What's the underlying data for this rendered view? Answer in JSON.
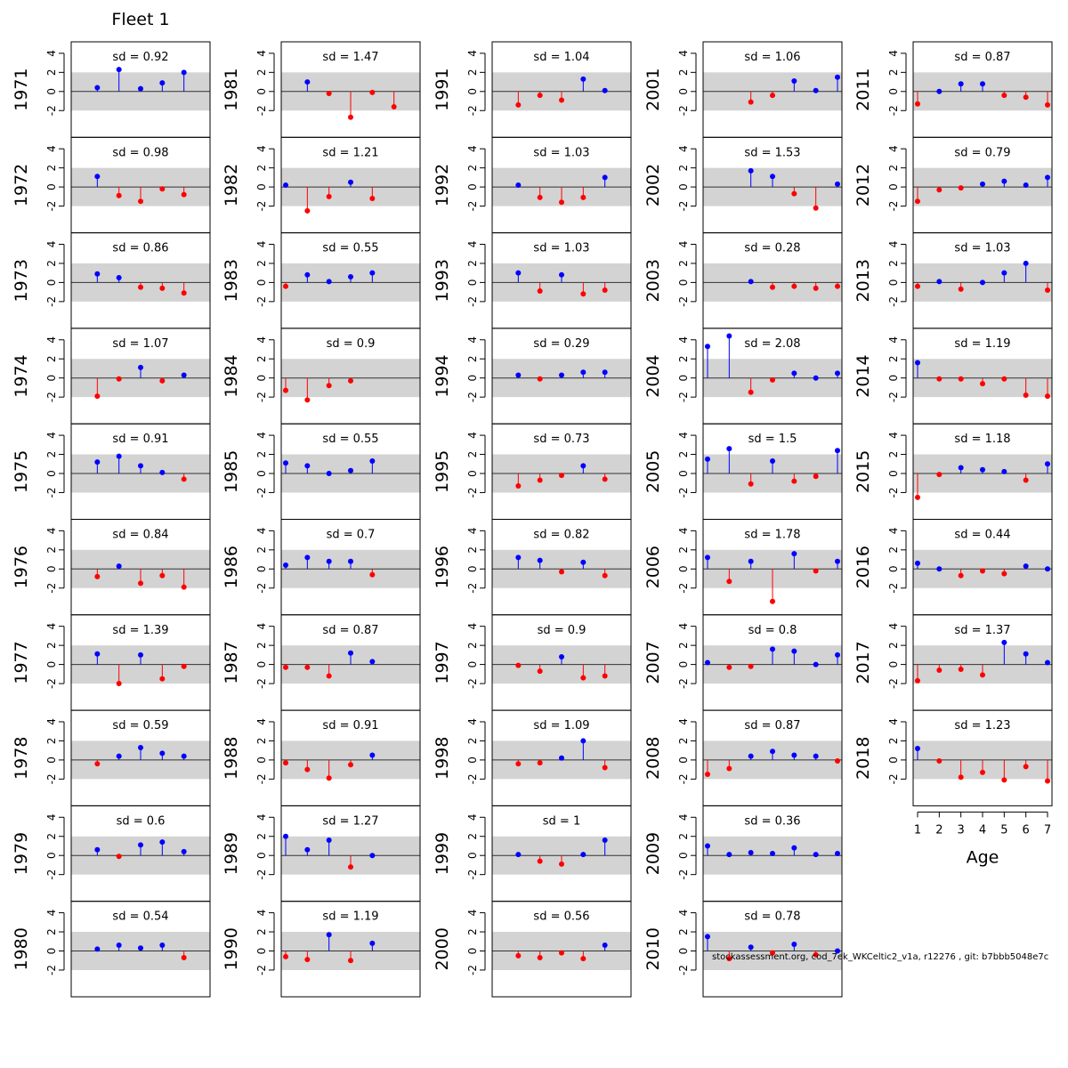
{
  "chart_data": {
    "type": "scatter",
    "style": "lollipop",
    "title": "Fleet 1",
    "xlabel": "Age",
    "x_ticks": [
      1,
      2,
      3,
      4,
      5,
      6,
      7
    ],
    "xlim": [
      1,
      7
    ],
    "ylim": [
      -4.8,
      5.2
    ],
    "y_ticks": [
      -2,
      0,
      2,
      4
    ],
    "y_tick_labels": [
      "-2",
      "0",
      "2",
      "4"
    ],
    "band": [
      -2,
      2
    ],
    "positive_color": "#0000ff",
    "negative_color": "#ff0000",
    "band_color": "#d3d3d3",
    "footer": "stockassessment.org, cod_7ek_WKCeltic2_v1a, r12276 , git: b7bbb5048e7c",
    "panels": [
      {
        "year": "1971",
        "sd_label": "sd = 0.92",
        "values": [
          null,
          0.4,
          2.3,
          0.3,
          0.9,
          2.0
        ]
      },
      {
        "year": "1972",
        "sd_label": "sd = 0.98",
        "values": [
          null,
          1.1,
          -0.9,
          -1.5,
          -0.2,
          -0.8
        ]
      },
      {
        "year": "1973",
        "sd_label": "sd = 0.86",
        "values": [
          null,
          0.9,
          0.5,
          -0.5,
          -0.6,
          -1.1
        ]
      },
      {
        "year": "1974",
        "sd_label": "sd = 1.07",
        "values": [
          null,
          -1.9,
          -0.1,
          1.1,
          -0.3,
          0.3
        ]
      },
      {
        "year": "1975",
        "sd_label": "sd = 0.91",
        "values": [
          null,
          1.2,
          1.8,
          0.8,
          0.1,
          -0.6
        ]
      },
      {
        "year": "1976",
        "sd_label": "sd = 0.84",
        "values": [
          null,
          -0.8,
          0.3,
          -1.5,
          -0.7,
          -1.9
        ]
      },
      {
        "year": "1977",
        "sd_label": "sd = 1.39",
        "values": [
          null,
          1.1,
          -2.0,
          1.0,
          -1.5,
          -0.2
        ]
      },
      {
        "year": "1978",
        "sd_label": "sd = 0.59",
        "values": [
          null,
          -0.4,
          0.4,
          1.3,
          0.7,
          0.4
        ]
      },
      {
        "year": "1979",
        "sd_label": "sd = 0.6",
        "values": [
          null,
          0.6,
          -0.1,
          1.1,
          1.4,
          0.4
        ]
      },
      {
        "year": "1980",
        "sd_label": "sd = 0.54",
        "values": [
          null,
          0.2,
          0.6,
          0.3,
          0.6,
          -0.7
        ]
      },
      {
        "year": "1981",
        "sd_label": "sd = 1.47",
        "values": [
          null,
          1.0,
          -0.2,
          -2.7,
          -0.1,
          -1.6
        ]
      },
      {
        "year": "1982",
        "sd_label": "sd = 1.21",
        "values": [
          0.2,
          -2.5,
          -1.0,
          0.5,
          -1.2
        ]
      },
      {
        "year": "1983",
        "sd_label": "sd = 0.55",
        "values": [
          -0.4,
          0.8,
          0.1,
          0.6,
          1.0
        ]
      },
      {
        "year": "1984",
        "sd_label": "sd = 0.9",
        "values": [
          -1.3,
          -2.3,
          -0.8,
          -0.3
        ]
      },
      {
        "year": "1985",
        "sd_label": "sd = 0.55",
        "values": [
          1.1,
          0.8,
          0.0,
          0.3,
          1.3
        ]
      },
      {
        "year": "1986",
        "sd_label": "sd = 0.7",
        "values": [
          0.4,
          1.2,
          0.8,
          0.8,
          -0.6
        ]
      },
      {
        "year": "1987",
        "sd_label": "sd = 0.87",
        "values": [
          -0.3,
          -0.3,
          -1.2,
          1.2,
          0.3
        ]
      },
      {
        "year": "1988",
        "sd_label": "sd = 0.91",
        "values": [
          -0.3,
          -1.0,
          -1.9,
          -0.5,
          0.5
        ]
      },
      {
        "year": "1989",
        "sd_label": "sd = 1.27",
        "values": [
          2.0,
          0.6,
          1.6,
          -1.2,
          0.0
        ]
      },
      {
        "year": "1990",
        "sd_label": "sd = 1.19",
        "values": [
          -0.6,
          -0.9,
          1.7,
          -1.0,
          0.8
        ]
      },
      {
        "year": "1991",
        "sd_label": "sd = 1.04",
        "values": [
          null,
          -1.4,
          -0.4,
          -0.9,
          1.3,
          0.1
        ]
      },
      {
        "year": "1992",
        "sd_label": "sd = 1.03",
        "values": [
          null,
          0.2,
          -1.1,
          -1.6,
          -1.1,
          1.0
        ]
      },
      {
        "year": "1993",
        "sd_label": "sd = 1.03",
        "values": [
          null,
          1.0,
          -0.9,
          0.8,
          -1.2,
          -0.8
        ]
      },
      {
        "year": "1994",
        "sd_label": "sd = 0.29",
        "values": [
          null,
          0.3,
          -0.1,
          0.3,
          0.6,
          0.6
        ]
      },
      {
        "year": "1995",
        "sd_label": "sd = 0.73",
        "values": [
          null,
          -1.3,
          -0.7,
          -0.2,
          0.8,
          -0.6
        ]
      },
      {
        "year": "1996",
        "sd_label": "sd = 0.82",
        "values": [
          null,
          1.2,
          0.9,
          -0.3,
          0.7,
          -0.7
        ]
      },
      {
        "year": "1997",
        "sd_label": "sd = 0.9",
        "values": [
          null,
          -0.1,
          -0.7,
          0.8,
          -1.4,
          -1.2
        ]
      },
      {
        "year": "1998",
        "sd_label": "sd = 1.09",
        "values": [
          null,
          -0.4,
          -0.3,
          0.2,
          2.0,
          -0.8
        ]
      },
      {
        "year": "1999",
        "sd_label": "sd = 1",
        "values": [
          null,
          0.1,
          -0.6,
          -0.9,
          0.1,
          1.6
        ]
      },
      {
        "year": "2000",
        "sd_label": "sd = 0.56",
        "values": [
          null,
          -0.5,
          -0.7,
          -0.2,
          -0.8,
          0.6
        ]
      },
      {
        "year": "2001",
        "sd_label": "sd = 1.06",
        "values": [
          null,
          null,
          -1.1,
          -0.4,
          1.1,
          0.1,
          1.5
        ]
      },
      {
        "year": "2002",
        "sd_label": "sd = 1.53",
        "values": [
          null,
          null,
          1.7,
          1.1,
          -0.7,
          -2.2,
          0.3
        ]
      },
      {
        "year": "2003",
        "sd_label": "sd = 0.28",
        "values": [
          null,
          null,
          0.1,
          -0.5,
          -0.4,
          -0.6,
          -0.4
        ]
      },
      {
        "year": "2004",
        "sd_label": "sd = 2.08",
        "values": [
          3.3,
          4.4,
          -1.5,
          -0.2,
          0.5,
          0.0,
          0.5
        ]
      },
      {
        "year": "2005",
        "sd_label": "sd = 1.5",
        "values": [
          1.5,
          2.6,
          -1.1,
          1.3,
          -0.8,
          -0.3,
          2.4
        ]
      },
      {
        "year": "2006",
        "sd_label": "sd = 1.78",
        "values": [
          1.2,
          -1.3,
          0.8,
          -3.4,
          1.6,
          -0.2,
          0.8
        ]
      },
      {
        "year": "2007",
        "sd_label": "sd = 0.8",
        "values": [
          0.2,
          -0.3,
          -0.2,
          1.6,
          1.4,
          0.0,
          1.0
        ]
      },
      {
        "year": "2008",
        "sd_label": "sd = 0.87",
        "values": [
          -1.5,
          -0.9,
          0.4,
          0.9,
          0.5,
          0.4,
          -0.1
        ]
      },
      {
        "year": "2009",
        "sd_label": "sd = 0.36",
        "values": [
          1.0,
          0.1,
          0.3,
          0.2,
          0.8,
          0.1,
          0.2
        ]
      },
      {
        "year": "2010",
        "sd_label": "sd = 0.78",
        "values": [
          1.5,
          -0.8,
          0.4,
          -0.2,
          0.7,
          -0.4,
          0.0
        ]
      },
      {
        "year": "2011",
        "sd_label": "sd = 0.87",
        "values": [
          -1.3,
          0.0,
          0.8,
          0.8,
          -0.4,
          -0.6,
          -1.4
        ]
      },
      {
        "year": "2012",
        "sd_label": "sd = 0.79",
        "values": [
          -1.5,
          -0.3,
          -0.1,
          0.3,
          0.6,
          0.2,
          1.0
        ]
      },
      {
        "year": "2013",
        "sd_label": "sd = 1.03",
        "values": [
          -0.4,
          0.1,
          -0.7,
          0.0,
          1.0,
          2.0,
          -0.8
        ]
      },
      {
        "year": "2014",
        "sd_label": "sd = 1.19",
        "values": [
          1.6,
          -0.1,
          -0.1,
          -0.6,
          -0.1,
          -1.8,
          -1.9
        ]
      },
      {
        "year": "2015",
        "sd_label": "sd = 1.18",
        "values": [
          -2.5,
          -0.1,
          0.6,
          0.4,
          0.2,
          -0.7,
          1.0
        ]
      },
      {
        "year": "2016",
        "sd_label": "sd = 0.44",
        "values": [
          0.6,
          0.0,
          -0.7,
          -0.2,
          -0.5,
          0.3,
          0.0
        ]
      },
      {
        "year": "2017",
        "sd_label": "sd = 1.37",
        "values": [
          -1.7,
          -0.6,
          -0.5,
          -1.1,
          2.3,
          1.1,
          0.2
        ]
      },
      {
        "year": "2018",
        "sd_label": "sd = 1.23",
        "values": [
          1.2,
          -0.1,
          -1.8,
          -1.3,
          -2.1,
          -0.7,
          -2.2
        ]
      }
    ]
  }
}
